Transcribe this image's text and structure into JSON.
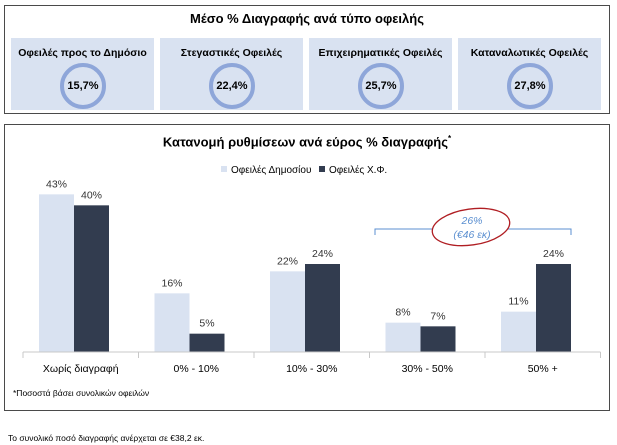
{
  "summary": {
    "title": "Μέσο % Διαγραφής ανά τύπο οφειλής",
    "cards": [
      {
        "label": "Οφειλές προς το Δημόσιο",
        "value": "15,7%"
      },
      {
        "label": "Στεγαστικές Οφειλές",
        "value": "22,4%"
      },
      {
        "label": "Επιχειρηματικές Οφειλές",
        "value": "25,7%"
      },
      {
        "label": "Καταναλωτικές Οφειλές",
        "value": "27,8%"
      }
    ]
  },
  "chart_data": {
    "type": "bar",
    "title": "Κατανομή ρυθμίσεων ανά εύρος % διαγραφής",
    "title_marker": "*",
    "categories": [
      "Χωρίς διαγραφή",
      "0% - 10%",
      "10% - 30%",
      "30% - 50%",
      "50% +"
    ],
    "series": [
      {
        "name": "Οφειλές Δημοσίου",
        "values": [
          43,
          16,
          22,
          8,
          11
        ],
        "labels": [
          "43%",
          "16%",
          "22%",
          "8%",
          "11%"
        ],
        "color": "#d9e2f1"
      },
      {
        "name": "Οφειλές Χ.Φ.",
        "values": [
          40,
          5,
          24,
          7,
          24
        ],
        "labels": [
          "40%",
          "5%",
          "24%",
          "7%",
          "24%"
        ],
        "color": "#323c4f"
      }
    ],
    "ylim": [
      0,
      45
    ],
    "legend": "top-center",
    "grid": false,
    "annotation": {
      "line1": "26%",
      "line2": "(€46 εκ)",
      "color": "#5b8fd0",
      "circle_color": "#b01e23"
    },
    "footnote": "*Ποσοστά βάσει συνολικών οφειλών"
  },
  "bottom_note": "Το συνολικό ποσό διαγραφής ανέρχεται σε €38,2 εκ."
}
